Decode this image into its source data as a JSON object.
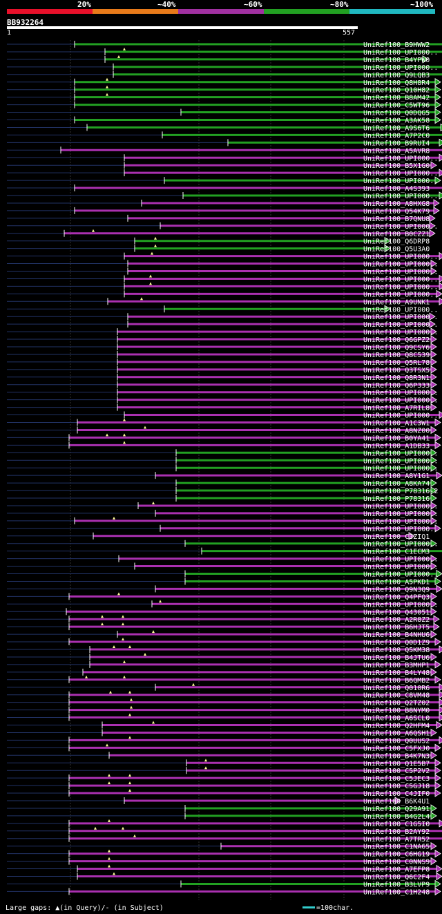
{
  "identity_scale": {
    "labels": [
      "20%",
      "~40%",
      "~60%",
      "~80%",
      "~100%"
    ],
    "colors": [
      "#e8102a",
      "#e87a1a",
      "#a030a0",
      "#22a022",
      "#20b8c0"
    ]
  },
  "query": {
    "id": "BB932264",
    "start": "1",
    "end": "557"
  },
  "legend_text": "Large gaps: ▲(in Query)/- (in Subject)",
  "scale_label": "=100char.",
  "chart_data": {
    "type": "alignment-overview",
    "query_length": 557,
    "colors": {
      "~60%": "#aa30b0",
      "~80%": "#22a022"
    },
    "hits": [
      {
        "id": "UniRef100_B9HWW2",
        "start": 108,
        "end": 650,
        "color": "green",
        "gaps": []
      },
      {
        "id": "UniRef100_UPI000..",
        "start": 152,
        "end": 660,
        "color": "green",
        "gaps": [
          180
        ]
      },
      {
        "id": "UniRef100_B4YPW0",
        "start": 152,
        "end": 620,
        "color": "green",
        "gaps": [
          172
        ]
      },
      {
        "id": "UniRef100_UPI000..",
        "start": 164,
        "end": 670,
        "color": "green",
        "gaps": []
      },
      {
        "id": "UniRef100_Q9LQB3",
        "start": 164,
        "end": 670,
        "color": "green",
        "gaps": []
      },
      {
        "id": "UniRef100_Q8H8R4",
        "start": 108,
        "end": 638,
        "color": "green",
        "gaps": [
          155
        ]
      },
      {
        "id": "UniRef100_Q10H82",
        "start": 108,
        "end": 638,
        "color": "green",
        "gaps": [
          155
        ]
      },
      {
        "id": "UniRef100_B8AM42",
        "start": 108,
        "end": 638,
        "color": "green",
        "gaps": [
          155
        ]
      },
      {
        "id": "UniRef100_C5WT96",
        "start": 108,
        "end": 638,
        "color": "green",
        "gaps": []
      },
      {
        "id": "UniRef100_Q0DQG5",
        "start": 262,
        "end": 638,
        "color": "green",
        "gaps": []
      },
      {
        "id": "UniRef100_A3AK58",
        "start": 108,
        "end": 638,
        "color": "green",
        "gaps": []
      },
      {
        "id": "UniRef100_A9S6T6",
        "start": 126,
        "end": 646,
        "color": "green",
        "gaps": []
      },
      {
        "id": "UniRef100_A7P2C0",
        "start": 235,
        "end": 656,
        "color": "green",
        "gaps": []
      },
      {
        "id": "UniRef100_B9RUI4",
        "start": 330,
        "end": 644,
        "color": "green",
        "gaps": []
      },
      {
        "id": "UniRef100_A5AVR8",
        "start": 88,
        "end": 656,
        "color": "magenta",
        "gaps": []
      },
      {
        "id": "UniRef100_UPI000..",
        "start": 180,
        "end": 644,
        "color": "magenta",
        "gaps": []
      },
      {
        "id": "UniRef100_B5X1G0",
        "start": 180,
        "end": 632,
        "color": "magenta",
        "gaps": []
      },
      {
        "id": "UniRef100_UPI000..",
        "start": 180,
        "end": 644,
        "color": "magenta",
        "gaps": []
      },
      {
        "id": "UniRef100_UPI000..",
        "start": 238,
        "end": 638,
        "color": "green",
        "gaps": []
      },
      {
        "id": "UniRef100_A4S393",
        "start": 108,
        "end": 670,
        "color": "magenta",
        "gaps": []
      },
      {
        "id": "UniRef100_UPI000..",
        "start": 265,
        "end": 644,
        "color": "green",
        "gaps": []
      },
      {
        "id": "UniRef100_A8HXG8",
        "start": 205,
        "end": 636,
        "color": "magenta",
        "gaps": []
      },
      {
        "id": "UniRef100_Q54K79",
        "start": 108,
        "end": 636,
        "color": "magenta",
        "gaps": []
      },
      {
        "id": "UniRef100_B7QNU8",
        "start": 185,
        "end": 630,
        "color": "magenta",
        "gaps": []
      },
      {
        "id": "UniRef100_UPI000..",
        "start": 232,
        "end": 630,
        "color": "magenta",
        "gaps": []
      },
      {
        "id": "UniRef100_B0CZZ1",
        "start": 93,
        "end": 630,
        "color": "magenta",
        "gaps": [
          135
        ]
      },
      {
        "id": "UniRef100_Q6DRP8",
        "start": 195,
        "end": 565,
        "color": "green",
        "gaps": [
          225
        ]
      },
      {
        "id": "UniRef100_Q5U3A0",
        "start": 195,
        "end": 565,
        "color": "green",
        "gaps": [
          225
        ]
      },
      {
        "id": "UniRef100_UPI000..",
        "start": 180,
        "end": 644,
        "color": "magenta",
        "gaps": [
          220
        ]
      },
      {
        "id": "UniRef100_UPI000..",
        "start": 185,
        "end": 632,
        "color": "magenta",
        "gaps": []
      },
      {
        "id": "UniRef100_UPI000..",
        "start": 185,
        "end": 632,
        "color": "magenta",
        "gaps": []
      },
      {
        "id": "UniRef100_UPI000..",
        "start": 180,
        "end": 644,
        "color": "magenta",
        "gaps": [
          218
        ]
      },
      {
        "id": "UniRef100_UPI000..",
        "start": 180,
        "end": 644,
        "color": "magenta",
        "gaps": [
          218
        ]
      },
      {
        "id": "UniRef100_UPI000..",
        "start": 180,
        "end": 640,
        "color": "magenta",
        "gaps": []
      },
      {
        "id": "UniRef100_A9UNK1",
        "start": 156,
        "end": 644,
        "color": "magenta",
        "gaps": [
          205
        ]
      },
      {
        "id": "UniRef100_UPI000..",
        "start": 238,
        "end": 565,
        "color": "green",
        "gaps": []
      },
      {
        "id": "UniRef100_UPI000..",
        "start": 185,
        "end": 630,
        "color": "magenta",
        "gaps": []
      },
      {
        "id": "UniRef100_UPI000..",
        "start": 185,
        "end": 630,
        "color": "magenta",
        "gaps": []
      },
      {
        "id": "UniRef100_UPI000..",
        "start": 170,
        "end": 632,
        "color": "magenta",
        "gaps": []
      },
      {
        "id": "UniRef100_Q6GPZ2",
        "start": 170,
        "end": 632,
        "color": "magenta",
        "gaps": []
      },
      {
        "id": "UniRef100_Q9CSY6",
        "start": 170,
        "end": 632,
        "color": "magenta",
        "gaps": []
      },
      {
        "id": "UniRef100_Q8C539",
        "start": 170,
        "end": 632,
        "color": "magenta",
        "gaps": []
      },
      {
        "id": "UniRef100_Q5RL78",
        "start": 170,
        "end": 632,
        "color": "magenta",
        "gaps": []
      },
      {
        "id": "UniRef100_Q3TSX5",
        "start": 170,
        "end": 632,
        "color": "magenta",
        "gaps": []
      },
      {
        "id": "UniRef100_Q8R3N1",
        "start": 170,
        "end": 632,
        "color": "magenta",
        "gaps": []
      },
      {
        "id": "UniRef100_Q6P333",
        "start": 170,
        "end": 632,
        "color": "magenta",
        "gaps": []
      },
      {
        "id": "UniRef100_UPI000..",
        "start": 170,
        "end": 632,
        "color": "magenta",
        "gaps": []
      },
      {
        "id": "UniRef100_UPI000..",
        "start": 170,
        "end": 632,
        "color": "magenta",
        "gaps": []
      },
      {
        "id": "UniRef100_A7RIL8",
        "start": 170,
        "end": 632,
        "color": "magenta",
        "gaps": []
      },
      {
        "id": "UniRef100_UPI000..",
        "start": 180,
        "end": 644,
        "color": "magenta",
        "gaps": []
      },
      {
        "id": "UniRef100_A1C3W1",
        "start": 112,
        "end": 638,
        "color": "magenta",
        "gaps": [
          180
        ]
      },
      {
        "id": "UniRef100_A8NZ00",
        "start": 112,
        "end": 632,
        "color": "magenta",
        "gaps": [
          210
        ]
      },
      {
        "id": "UniRef100_B0YA41",
        "start": 100,
        "end": 638,
        "color": "magenta",
        "gaps": [
          155,
          180
        ]
      },
      {
        "id": "UniRef100_A1DB33",
        "start": 100,
        "end": 638,
        "color": "magenta",
        "gaps": [
          180
        ]
      },
      {
        "id": "UniRef100_UPI000..",
        "start": 255,
        "end": 632,
        "color": "green",
        "gaps": []
      },
      {
        "id": "UniRef100_UPI000..",
        "start": 255,
        "end": 632,
        "color": "green",
        "gaps": []
      },
      {
        "id": "UniRef100_UPI000..",
        "start": 255,
        "end": 632,
        "color": "green",
        "gaps": []
      },
      {
        "id": "UniRef100_A8Y1G1",
        "start": 225,
        "end": 640,
        "color": "magenta",
        "gaps": []
      },
      {
        "id": "UniRef100_A8KA74",
        "start": 255,
        "end": 632,
        "color": "green",
        "gaps": []
      },
      {
        "id": "UniRef100_P78316-2",
        "start": 255,
        "end": 632,
        "color": "green",
        "gaps": []
      },
      {
        "id": "UniRef100_P78316",
        "start": 255,
        "end": 632,
        "color": "green",
        "gaps": []
      },
      {
        "id": "UniRef100_UPI000..",
        "start": 200,
        "end": 632,
        "color": "magenta",
        "gaps": [
          222
        ]
      },
      {
        "id": "UniRef100_UPI000..",
        "start": 225,
        "end": 632,
        "color": "magenta",
        "gaps": []
      },
      {
        "id": "UniRef100_UPI000..",
        "start": 108,
        "end": 632,
        "color": "magenta",
        "gaps": [
          165
        ]
      },
      {
        "id": "UniRef100_UPI000..",
        "start": 232,
        "end": 638,
        "color": "magenta",
        "gaps": []
      },
      {
        "id": "UniRef100_C3ZIQ1",
        "start": 135,
        "end": 600,
        "color": "magenta",
        "gaps": []
      },
      {
        "id": "UniRef100_UPI000..",
        "start": 268,
        "end": 632,
        "color": "green",
        "gaps": []
      },
      {
        "id": "UniRef100_C1ECM3",
        "start": 292,
        "end": 656,
        "color": "green",
        "gaps": []
      },
      {
        "id": "UniRef100_UPI000..",
        "start": 172,
        "end": 632,
        "color": "magenta",
        "gaps": []
      },
      {
        "id": "UniRef100_UPI000..",
        "start": 195,
        "end": 632,
        "color": "magenta",
        "gaps": []
      },
      {
        "id": "UniRef100_UPI000..",
        "start": 268,
        "end": 640,
        "color": "green",
        "gaps": []
      },
      {
        "id": "UniRef100_A5PKD1",
        "start": 268,
        "end": 638,
        "color": "green",
        "gaps": []
      },
      {
        "id": "UniRef100_Q9N3Q9",
        "start": 225,
        "end": 640,
        "color": "magenta",
        "gaps": []
      },
      {
        "id": "UniRef100_Q4PFQ3",
        "start": 100,
        "end": 632,
        "color": "magenta",
        "gaps": [
          172
        ]
      },
      {
        "id": "UniRef100_UPI000..",
        "start": 220,
        "end": 632,
        "color": "magenta",
        "gaps": [
          232
        ]
      },
      {
        "id": "UniRef100_Q43051",
        "start": 96,
        "end": 632,
        "color": "magenta",
        "gaps": []
      },
      {
        "id": "UniRef100_A2R8Z2",
        "start": 100,
        "end": 636,
        "color": "magenta",
        "gaps": [
          148,
          178
        ]
      },
      {
        "id": "UniRef100_B6HJT5",
        "start": 100,
        "end": 636,
        "color": "magenta",
        "gaps": [
          148,
          178
        ]
      },
      {
        "id": "UniRef100_B4NHU6",
        "start": 170,
        "end": 632,
        "color": "magenta",
        "gaps": [
          222
        ]
      },
      {
        "id": "UniRef100_Q0D1Z9",
        "start": 100,
        "end": 638,
        "color": "magenta",
        "gaps": [
          178
        ]
      },
      {
        "id": "UniRef100_Q5KM38",
        "start": 130,
        "end": 644,
        "color": "magenta",
        "gaps": [
          165,
          188
        ]
      },
      {
        "id": "UniRef100_B4JTU6",
        "start": 130,
        "end": 632,
        "color": "magenta",
        "gaps": [
          210
        ]
      },
      {
        "id": "UniRef100_B3MHP1",
        "start": 130,
        "end": 638,
        "color": "magenta",
        "gaps": [
          180
        ]
      },
      {
        "id": "UniRef100_B4LY48",
        "start": 120,
        "end": 632,
        "color": "magenta",
        "gaps": []
      },
      {
        "id": "UniRef100_B6QMB2",
        "start": 100,
        "end": 638,
        "color": "magenta",
        "gaps": [
          125,
          180
        ]
      },
      {
        "id": "UniRef100_Q010R6",
        "start": 225,
        "end": 644,
        "color": "magenta",
        "gaps": [
          280
        ]
      },
      {
        "id": "UniRef100_C8VM48",
        "start": 100,
        "end": 644,
        "color": "magenta",
        "gaps": [
          160,
          188
        ]
      },
      {
        "id": "UniRef100_Q2TZ02",
        "start": 100,
        "end": 644,
        "color": "magenta",
        "gaps": [
          190
        ]
      },
      {
        "id": "UniRef100_B8NYM0",
        "start": 100,
        "end": 644,
        "color": "magenta",
        "gaps": [
          190
        ]
      },
      {
        "id": "UniRef100_A6SCL0",
        "start": 100,
        "end": 644,
        "color": "magenta",
        "gaps": [
          188
        ]
      },
      {
        "id": "UniRef100_Q2HFM4",
        "start": 148,
        "end": 640,
        "color": "magenta",
        "gaps": [
          222
        ]
      },
      {
        "id": "UniRef100_A6QSH1",
        "start": 148,
        "end": 632,
        "color": "magenta",
        "gaps": []
      },
      {
        "id": "UniRef100_Q0UUS2",
        "start": 100,
        "end": 644,
        "color": "magenta",
        "gaps": [
          188
        ]
      },
      {
        "id": "UniRef100_C5FXJ0",
        "start": 100,
        "end": 638,
        "color": "magenta",
        "gaps": [
          155
        ]
      },
      {
        "id": "UniRef100_B4K7N3",
        "start": 158,
        "end": 632,
        "color": "magenta",
        "gaps": []
      },
      {
        "id": "UniRef100_Q1E5B7",
        "start": 270,
        "end": 638,
        "color": "magenta",
        "gaps": [
          298
        ]
      },
      {
        "id": "UniRef100_C5P2V2",
        "start": 270,
        "end": 638,
        "color": "magenta",
        "gaps": [
          298
        ]
      },
      {
        "id": "UniRef100_C5JEC3",
        "start": 100,
        "end": 638,
        "color": "magenta",
        "gaps": [
          158,
          188
        ]
      },
      {
        "id": "UniRef100_C5GJ18",
        "start": 100,
        "end": 638,
        "color": "magenta",
        "gaps": [
          158,
          188
        ]
      },
      {
        "id": "UniRef100_C4JIF0",
        "start": 100,
        "end": 638,
        "color": "magenta",
        "gaps": [
          188
        ]
      },
      {
        "id": "UniRef100_B6K4U1",
        "start": 180,
        "end": 580,
        "color": "magenta",
        "gaps": []
      },
      {
        "id": "UniRef100_Q29A91",
        "start": 268,
        "end": 632,
        "color": "green",
        "gaps": []
      },
      {
        "id": "UniRef100_B4G2L4",
        "start": 268,
        "end": 632,
        "color": "green",
        "gaps": []
      },
      {
        "id": "UniRef100_C1G5I0",
        "start": 100,
        "end": 644,
        "color": "magenta",
        "gaps": [
          158
        ]
      },
      {
        "id": "UniRef100_B2AY92",
        "start": 100,
        "end": 668,
        "color": "magenta",
        "gaps": [
          138,
          178
        ]
      },
      {
        "id": "UniRef100_A7TR52",
        "start": 100,
        "end": 668,
        "color": "magenta",
        "gaps": [
          195
        ]
      },
      {
        "id": "UniRef100_C1NA65",
        "start": 320,
        "end": 632,
        "color": "magenta",
        "gaps": []
      },
      {
        "id": "UniRef100_C6HG19",
        "start": 100,
        "end": 638,
        "color": "magenta",
        "gaps": [
          158
        ]
      },
      {
        "id": "UniRef100_C0NNS9",
        "start": 100,
        "end": 632,
        "color": "magenta",
        "gaps": [
          158
        ]
      },
      {
        "id": "UniRef100_A7EFP8",
        "start": 112,
        "end": 640,
        "color": "magenta",
        "gaps": [
          158
        ]
      },
      {
        "id": "UniRef100_Q6C2F4",
        "start": 112,
        "end": 640,
        "color": "magenta",
        "gaps": [
          165
        ]
      },
      {
        "id": "UniRef100_B3LVP9",
        "start": 262,
        "end": 638,
        "color": "green",
        "gaps": []
      },
      {
        "id": "UniRef100_C1H248",
        "start": 100,
        "end": 638,
        "color": "magenta",
        "gaps": []
      }
    ]
  }
}
